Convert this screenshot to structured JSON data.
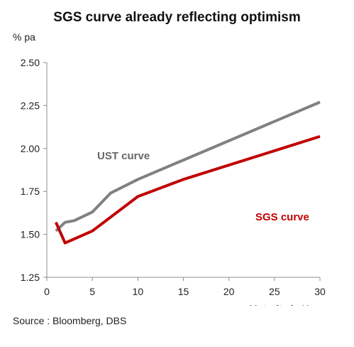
{
  "header": {
    "title": "SGS curve already reflecting optimism",
    "y_unit": "% pa"
  },
  "footer": {
    "source": "Source : Bloomberg, DBS"
  },
  "chart_data": {
    "type": "line",
    "title": "SGS curve already reflecting optimism",
    "xlabel": "Maturity in Years",
    "ylabel": "% pa",
    "xlim": [
      0,
      30
    ],
    "ylim": [
      1.25,
      2.5
    ],
    "x_ticks": [
      "0",
      "5",
      "10",
      "15",
      "20",
      "25",
      "30"
    ],
    "y_ticks": [
      "1.25",
      "1.50",
      "1.75",
      "2.00",
      "2.25",
      "2.50"
    ],
    "grid": false,
    "legend": "inline labels",
    "series": [
      {
        "name": "UST curve",
        "color": "#808080",
        "x": [
          1,
          2,
          3,
          5,
          7,
          10,
          30
        ],
        "y": [
          1.52,
          1.57,
          1.58,
          1.63,
          1.74,
          1.82,
          2.27
        ]
      },
      {
        "name": "SGS curve",
        "color": "#c00000",
        "x": [
          1,
          2,
          5,
          10,
          15,
          30
        ],
        "y": [
          1.57,
          1.45,
          1.52,
          1.72,
          1.82,
          2.07
        ]
      }
    ]
  }
}
